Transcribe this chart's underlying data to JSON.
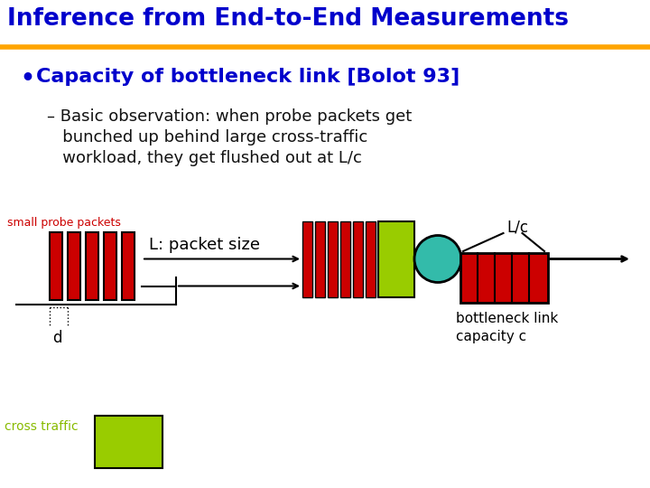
{
  "title": "Inference from End-to-End Measurements",
  "title_color": "#0000CC",
  "title_bar_color": "#FFA500",
  "bullet1": "Capacity of bottleneck link [Bolot 93]",
  "bullet1_color": "#0000CC",
  "sub_line1": "– Basic observation: when probe packets get",
  "sub_line2": "   bunched up behind large cross-traffic",
  "sub_line3": "   workload, they get flushed out at L/c",
  "sub_bullet_color": "#111111",
  "label_small_probe": "small probe packets",
  "label_small_probe_color": "#CC0000",
  "label_L_packet": "L: packet size",
  "label_d": "d",
  "label_Lc": "L/c",
  "label_bottleneck": "bottleneck link\ncapacity c",
  "label_cross_traffic": "cross traffic",
  "label_cross_traffic_color": "#88BB00",
  "bg_color": "#FFFFFF",
  "red_color": "#CC0000",
  "green_color": "#99CC00",
  "teal_color": "#33BBAA",
  "black_color": "#000000"
}
